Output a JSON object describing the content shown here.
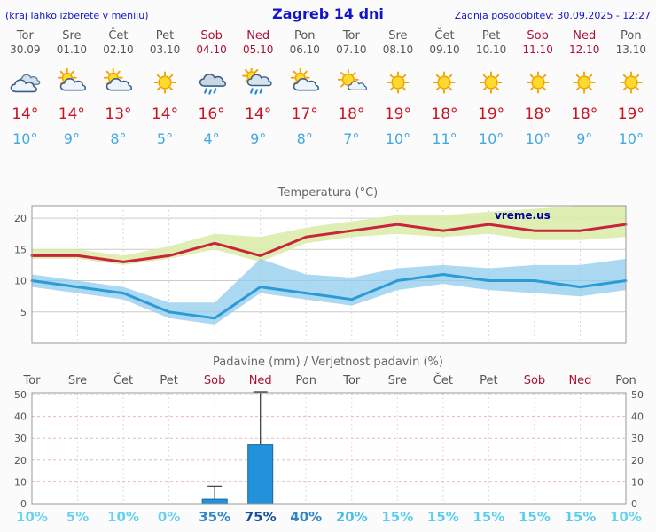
{
  "header": {
    "left_note": "(kraj lahko izberete v meniju)",
    "title": "Zagreb 14 dni",
    "updated": "Zadnja posodobitev: 30.09.2025 - 12:27"
  },
  "days": [
    {
      "name": "Tor",
      "date": "30.09",
      "weekend": false,
      "icon": "cloudy",
      "high": "14°",
      "low": "10°"
    },
    {
      "name": "Sre",
      "date": "01.10",
      "weekend": false,
      "icon": "partly-cloudy",
      "high": "14°",
      "low": "9°"
    },
    {
      "name": "Čet",
      "date": "02.10",
      "weekend": false,
      "icon": "partly-cloudy",
      "high": "13°",
      "low": "8°"
    },
    {
      "name": "Pet",
      "date": "03.10",
      "weekend": false,
      "icon": "sunny",
      "high": "14°",
      "low": "5°"
    },
    {
      "name": "Sob",
      "date": "04.10",
      "weekend": true,
      "icon": "rain",
      "high": "16°",
      "low": "4°"
    },
    {
      "name": "Ned",
      "date": "05.10",
      "weekend": true,
      "icon": "sun-rain",
      "high": "14°",
      "low": "9°"
    },
    {
      "name": "Pon",
      "date": "06.10",
      "weekend": false,
      "icon": "partly-cloudy",
      "high": "17°",
      "low": "8°"
    },
    {
      "name": "Tor",
      "date": "07.10",
      "weekend": false,
      "icon": "mostly-sunny",
      "high": "18°",
      "low": "7°"
    },
    {
      "name": "Sre",
      "date": "08.10",
      "weekend": false,
      "icon": "sunny",
      "high": "19°",
      "low": "10°"
    },
    {
      "name": "Čet",
      "date": "09.10",
      "weekend": false,
      "icon": "sunny",
      "high": "18°",
      "low": "11°"
    },
    {
      "name": "Pet",
      "date": "10.10",
      "weekend": false,
      "icon": "sunny",
      "high": "19°",
      "low": "10°"
    },
    {
      "name": "Sob",
      "date": "11.10",
      "weekend": true,
      "icon": "sunny",
      "high": "18°",
      "low": "10°"
    },
    {
      "name": "Ned",
      "date": "12.10",
      "weekend": true,
      "icon": "sunny",
      "high": "18°",
      "low": "9°"
    },
    {
      "name": "Pon",
      "date": "13.10",
      "weekend": false,
      "icon": "sunny",
      "high": "19°",
      "low": "10°"
    }
  ],
  "chart_data": [
    {
      "type": "line",
      "title": "Temperatura (°C)",
      "categories": [
        "Tor",
        "Sre",
        "Čet",
        "Pet",
        "Sob",
        "Ned",
        "Pon",
        "Tor",
        "Sre",
        "Čet",
        "Pet",
        "Sob",
        "Ned",
        "Pon"
      ],
      "ylim": [
        0,
        22
      ],
      "yticks": [
        5,
        10,
        15,
        20
      ],
      "watermark": "vreme.us",
      "series": [
        {
          "name": "max_temp",
          "color": "#c8253c",
          "values": [
            14,
            14,
            13,
            14,
            16,
            14,
            17,
            18,
            19,
            18,
            19,
            18,
            18,
            19
          ]
        },
        {
          "name": "min_temp",
          "color": "#2d9ad8",
          "values": [
            10,
            9,
            8,
            5,
            4,
            9,
            8,
            7,
            10,
            11,
            10,
            10,
            9,
            10
          ]
        },
        {
          "name": "max_range_upper",
          "values": [
            15,
            15,
            14,
            15.5,
            17.5,
            17,
            18.5,
            19.5,
            20.5,
            20.5,
            21,
            21.5,
            22,
            22.5
          ]
        },
        {
          "name": "max_range_lower",
          "values": [
            13.5,
            13.5,
            12.5,
            13.5,
            15,
            13,
            16,
            17,
            17.5,
            17,
            17.5,
            16.5,
            16.5,
            17
          ]
        },
        {
          "name": "min_range_upper",
          "values": [
            11,
            10,
            9,
            6.5,
            6.5,
            13.5,
            11,
            10.5,
            12,
            12.5,
            12,
            12.5,
            12.5,
            13.5
          ]
        },
        {
          "name": "min_range_lower",
          "values": [
            9,
            8,
            7,
            4,
            3,
            8,
            7,
            6,
            8.5,
            9.5,
            8.5,
            8,
            7.5,
            8.5
          ]
        }
      ],
      "band_colors": {
        "max": "#dcecaa",
        "min": "#8fccec"
      }
    },
    {
      "type": "bar",
      "title": "Padavine (mm) / Verjetnost padavin (%)",
      "categories": [
        "Tor",
        "Sre",
        "Čet",
        "Pet",
        "Sob",
        "Ned",
        "Pon",
        "Tor",
        "Sre",
        "Čet",
        "Pet",
        "Sob",
        "Ned",
        "Pon"
      ],
      "ylim": [
        0,
        50
      ],
      "yticks": [
        0,
        10,
        20,
        30,
        40,
        50
      ],
      "precip_mm": [
        0,
        0,
        0,
        0,
        2,
        27,
        0,
        0,
        0,
        0,
        0,
        0,
        0,
        0
      ],
      "precip_max_mm": [
        0,
        0,
        0,
        0,
        8,
        52,
        0,
        0,
        0,
        0,
        0,
        0,
        0,
        0
      ],
      "probability_pct": [
        10,
        5,
        10,
        0,
        35,
        75,
        40,
        20,
        15,
        15,
        15,
        15,
        15,
        10
      ],
      "probability_labels": [
        "10%",
        "5%",
        "10%",
        "0%",
        "35%",
        "75%",
        "40%",
        "20%",
        "15%",
        "15%",
        "15%",
        "15%",
        "15%",
        "10%"
      ],
      "probability_colors": [
        "#66d2f0",
        "#66d2f0",
        "#66d2f0",
        "#66d2f0",
        "#2e86c8",
        "#174f9e",
        "#2e86c8",
        "#4cc0e8",
        "#59cdf0",
        "#59cdf0",
        "#59cdf0",
        "#59cdf0",
        "#59cdf0",
        "#66d2f0"
      ],
      "bar_color": "#2492db"
    }
  ],
  "colors": {
    "header_blue": "#1414cc",
    "weekend_red": "#aa1133",
    "high_temp_red": "#cc1122",
    "low_temp_blue": "#44a8e0",
    "watermark_navy": "#000099"
  }
}
